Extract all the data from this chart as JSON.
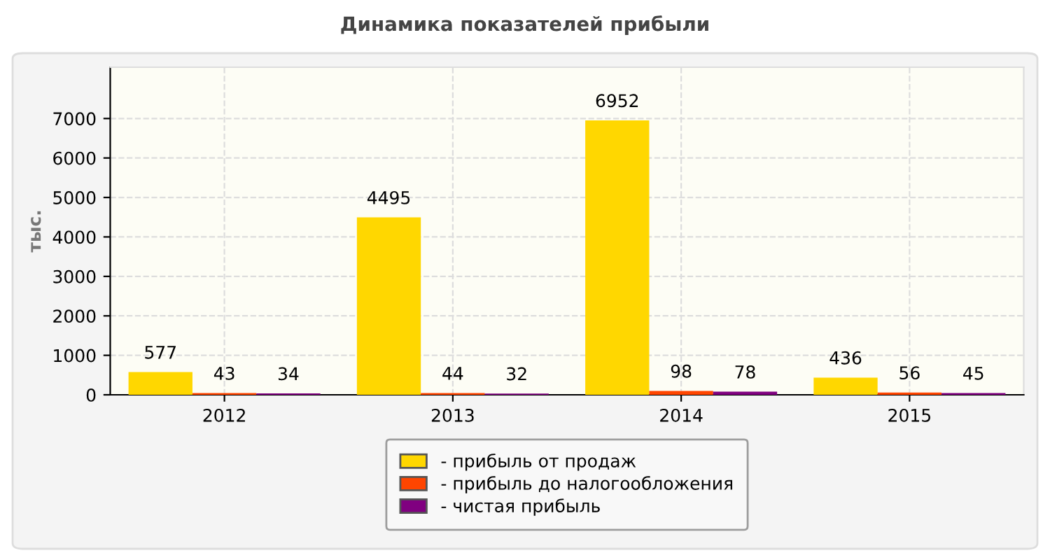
{
  "chart_data": {
    "type": "bar",
    "title": "Динамика показателей прибыли",
    "ylabel": "тыс.",
    "categories": [
      "2012",
      "2013",
      "2014",
      "2015"
    ],
    "series": [
      {
        "name": "- прибыль от продаж",
        "color": "#ffd700",
        "values": [
          577,
          4495,
          6952,
          436
        ]
      },
      {
        "name": "- прибыль до налогообложения",
        "color": "#ff4500",
        "values": [
          43,
          44,
          98,
          56
        ]
      },
      {
        "name": "- чистая прибыль",
        "color": "#800080",
        "values": [
          34,
          32,
          78,
          45
        ]
      }
    ],
    "ylim": [
      0,
      8300
    ],
    "yticks": [
      0,
      1000,
      2000,
      3000,
      4000,
      5000,
      6000,
      7000
    ],
    "grid": true,
    "legend": "bottom",
    "data_labels": true
  }
}
